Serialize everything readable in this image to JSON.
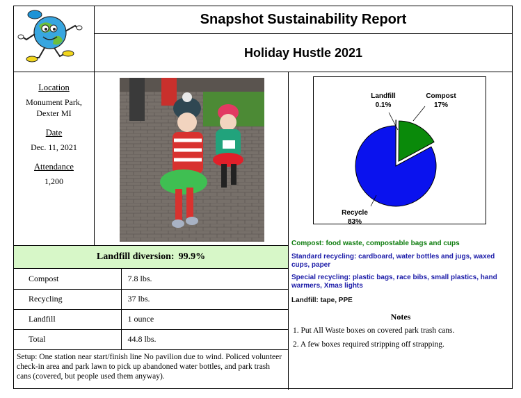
{
  "header": {
    "title": "Snapshot Sustainability Report",
    "event_name": "Holiday Hustle 2021"
  },
  "info": {
    "location_label": "Location",
    "location_line1": "Monument Park,",
    "location_line2": "Dexter MI",
    "date_label": "Date",
    "date_value": "Dec. 11, 2021",
    "attendance_label": "Attendance",
    "attendance_value": "1,200"
  },
  "diversion": {
    "label": "Landfill diversion:",
    "value": "99.9%"
  },
  "stats": [
    {
      "name": "Compost",
      "value": "7.8 lbs."
    },
    {
      "name": "Recycling",
      "value": "37 lbs."
    },
    {
      "name": "Landfill",
      "value": "1 ounce"
    },
    {
      "name": "Total",
      "value": "44.8 lbs."
    }
  ],
  "setup_text": "Setup: One station near start/finish line No pavilion due to wind. Policed volunteer check-in area and park lawn to pick up abandoned water bottles, and park trash cans (covered, but people used them anyway).",
  "chart_data": {
    "type": "pie",
    "title": "",
    "slices": [
      {
        "label": "Landfill",
        "value": 0.1,
        "display": "0.1%",
        "color": "#ffffff"
      },
      {
        "label": "Compost",
        "value": 17,
        "display": "17%",
        "color": "#0a8a0a"
      },
      {
        "label": "Recycle",
        "value": 83,
        "display": "83%",
        "color": "#0a12ee"
      }
    ],
    "legend": "none"
  },
  "categories": [
    {
      "text": "Compost: food waste, compostable bags and cups",
      "color": "#0f7d0f"
    },
    {
      "text": "Standard recycling: cardboard, water bottles and jugs, waxed cups, paper",
      "color": "#1c1ca8"
    },
    {
      "text": "Special recycling: plastic bags, race bibs, small plastics, hand warmers, Xmas lights",
      "color": "#1c1ca8"
    },
    {
      "text": "Landfill: tape, PPE",
      "color": "#111111"
    }
  ],
  "notes": {
    "title": "Notes",
    "items": [
      "1.  Put All Waste boxes on covered park trash cans.",
      "2.  A few boxes required stripping off strapping."
    ]
  }
}
